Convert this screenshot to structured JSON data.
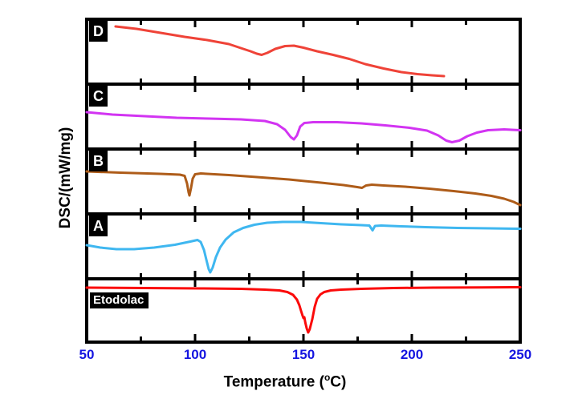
{
  "figure": {
    "y_axis_label": "DSC/(mW/mg)",
    "x_axis_label_parts": {
      "pre": "Temperature (",
      "sup": "o",
      "post": "C)"
    },
    "x_axis": {
      "min": 50,
      "max": 250,
      "major_ticks": [
        50,
        100,
        150,
        200,
        250
      ],
      "minor_ticks": [
        75,
        125,
        175,
        225
      ],
      "tick_label_color": "#1515e0",
      "axis_color": "#000000"
    }
  },
  "chart_data": {
    "type": "line",
    "title": "",
    "xlabel": "Temperature (°C)",
    "ylabel": "DSC/(mW/mg)",
    "xlim": [
      50,
      250
    ],
    "layout_note": "five vertically stacked DSC panels sharing one temperature axis; y values are normalized heat flow per panel (0 = panel bottom, 1 = panel top)",
    "panels": [
      {
        "label": "D",
        "color": "#ef4338",
        "points": [
          [
            63.3,
            0.889
          ],
          [
            73.0,
            0.852
          ],
          [
            84.1,
            0.79
          ],
          [
            95.2,
            0.728
          ],
          [
            105.6,
            0.679
          ],
          [
            115.6,
            0.617
          ],
          [
            121.1,
            0.556
          ],
          [
            125.6,
            0.506
          ],
          [
            128.5,
            0.469
          ],
          [
            130.7,
            0.451
          ],
          [
            133.3,
            0.481
          ],
          [
            137.0,
            0.543
          ],
          [
            141.5,
            0.586
          ],
          [
            145.6,
            0.593
          ],
          [
            150.0,
            0.562
          ],
          [
            156.3,
            0.506
          ],
          [
            163.7,
            0.451
          ],
          [
            171.1,
            0.389
          ],
          [
            178.5,
            0.309
          ],
          [
            187.0,
            0.241
          ],
          [
            195.2,
            0.185
          ],
          [
            202.6,
            0.154
          ],
          [
            209.3,
            0.136
          ],
          [
            214.8,
            0.123
          ]
        ]
      },
      {
        "label": "C",
        "color": "#d234f2",
        "points": [
          [
            50.0,
            0.568
          ],
          [
            61.9,
            0.531
          ],
          [
            76.7,
            0.506
          ],
          [
            91.5,
            0.481
          ],
          [
            106.3,
            0.469
          ],
          [
            121.1,
            0.457
          ],
          [
            132.2,
            0.432
          ],
          [
            137.8,
            0.383
          ],
          [
            141.5,
            0.296
          ],
          [
            144.1,
            0.185
          ],
          [
            145.6,
            0.148
          ],
          [
            147.0,
            0.21
          ],
          [
            148.5,
            0.346
          ],
          [
            150.4,
            0.401
          ],
          [
            154.4,
            0.414
          ],
          [
            165.6,
            0.414
          ],
          [
            176.7,
            0.395
          ],
          [
            187.8,
            0.364
          ],
          [
            198.9,
            0.327
          ],
          [
            207.0,
            0.284
          ],
          [
            212.2,
            0.21
          ],
          [
            215.9,
            0.13
          ],
          [
            218.5,
            0.105
          ],
          [
            221.9,
            0.13
          ],
          [
            225.6,
            0.198
          ],
          [
            230.0,
            0.253
          ],
          [
            235.2,
            0.29
          ],
          [
            242.6,
            0.302
          ],
          [
            250.0,
            0.29
          ]
        ]
      },
      {
        "label": "B",
        "color": "#ae5c19",
        "points": [
          [
            50.0,
            0.654
          ],
          [
            65.6,
            0.636
          ],
          [
            84.1,
            0.617
          ],
          [
            93.0,
            0.605
          ],
          [
            95.2,
            0.586
          ],
          [
            96.3,
            0.469
          ],
          [
            97.0,
            0.333
          ],
          [
            97.4,
            0.284
          ],
          [
            98.1,
            0.395
          ],
          [
            98.9,
            0.543
          ],
          [
            100.0,
            0.611
          ],
          [
            102.6,
            0.623
          ],
          [
            115.6,
            0.599
          ],
          [
            128.5,
            0.568
          ],
          [
            143.3,
            0.531
          ],
          [
            158.1,
            0.481
          ],
          [
            168.5,
            0.444
          ],
          [
            174.8,
            0.414
          ],
          [
            177.0,
            0.401
          ],
          [
            178.9,
            0.438
          ],
          [
            181.5,
            0.451
          ],
          [
            187.0,
            0.438
          ],
          [
            197.0,
            0.42
          ],
          [
            208.1,
            0.389
          ],
          [
            219.3,
            0.352
          ],
          [
            229.3,
            0.315
          ],
          [
            236.7,
            0.278
          ],
          [
            242.6,
            0.235
          ],
          [
            247.0,
            0.185
          ],
          [
            250.0,
            0.136
          ]
        ]
      },
      {
        "label": "A",
        "color": "#3fb7f0",
        "points": [
          [
            50.0,
            0.519
          ],
          [
            56.3,
            0.481
          ],
          [
            63.7,
            0.457
          ],
          [
            71.9,
            0.457
          ],
          [
            81.1,
            0.481
          ],
          [
            90.7,
            0.525
          ],
          [
            97.8,
            0.574
          ],
          [
            101.1,
            0.599
          ],
          [
            102.6,
            0.568
          ],
          [
            104.1,
            0.444
          ],
          [
            105.2,
            0.296
          ],
          [
            106.3,
            0.148
          ],
          [
            107.0,
            0.099
          ],
          [
            108.1,
            0.173
          ],
          [
            109.6,
            0.333
          ],
          [
            111.5,
            0.481
          ],
          [
            114.1,
            0.605
          ],
          [
            117.8,
            0.716
          ],
          [
            122.2,
            0.784
          ],
          [
            127.4,
            0.833
          ],
          [
            133.3,
            0.864
          ],
          [
            140.4,
            0.877
          ],
          [
            148.9,
            0.877
          ],
          [
            158.1,
            0.858
          ],
          [
            167.4,
            0.84
          ],
          [
            176.7,
            0.827
          ],
          [
            180.4,
            0.821
          ],
          [
            181.9,
            0.747
          ],
          [
            183.0,
            0.815
          ],
          [
            185.9,
            0.821
          ],
          [
            195.2,
            0.809
          ],
          [
            206.3,
            0.796
          ],
          [
            221.1,
            0.784
          ],
          [
            235.9,
            0.778
          ],
          [
            250.0,
            0.772
          ]
        ]
      },
      {
        "label": "Etodolac",
        "color": "#fb0a0a",
        "points": [
          [
            50.0,
            0.861
          ],
          [
            76.7,
            0.854
          ],
          [
            102.6,
            0.848
          ],
          [
            121.1,
            0.842
          ],
          [
            132.2,
            0.829
          ],
          [
            138.9,
            0.816
          ],
          [
            142.6,
            0.791
          ],
          [
            145.2,
            0.747
          ],
          [
            147.0,
            0.671
          ],
          [
            148.1,
            0.582
          ],
          [
            148.9,
            0.494
          ],
          [
            149.6,
            0.418
          ],
          [
            150.0,
            0.38
          ],
          [
            150.4,
            0.392
          ],
          [
            150.9,
            0.304
          ],
          [
            151.5,
            0.215
          ],
          [
            152.2,
            0.152
          ],
          [
            152.9,
            0.203
          ],
          [
            154.1,
            0.367
          ],
          [
            155.2,
            0.557
          ],
          [
            156.3,
            0.684
          ],
          [
            157.8,
            0.753
          ],
          [
            159.6,
            0.791
          ],
          [
            162.6,
            0.816
          ],
          [
            167.4,
            0.829
          ],
          [
            176.7,
            0.842
          ],
          [
            191.5,
            0.854
          ],
          [
            210.0,
            0.861
          ],
          [
            232.2,
            0.865
          ],
          [
            250.0,
            0.867
          ]
        ]
      }
    ]
  }
}
